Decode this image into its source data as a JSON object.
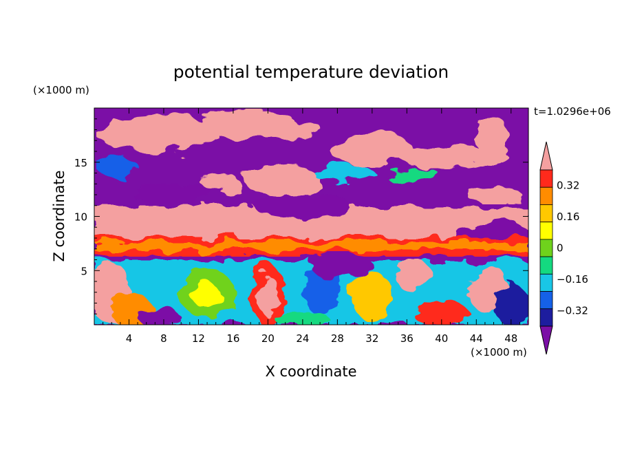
{
  "chart_data": {
    "type": "heatmap",
    "title": "potential temperature deviation",
    "time_label": "t=1.0296e+06",
    "xlabel": "X coordinate",
    "ylabel": "Z coordinate",
    "x_unit": "(×1000 m)",
    "y_unit": "(×1000 m)",
    "xlim": [
      0,
      50
    ],
    "ylim": [
      0,
      20
    ],
    "x_ticks": [
      "4",
      "8",
      "12",
      "16",
      "20",
      "24",
      "28",
      "32",
      "36",
      "40",
      "44",
      "48"
    ],
    "y_ticks": [
      "5",
      "10",
      "15"
    ],
    "colorbar": {
      "levels": [
        -0.4,
        -0.32,
        -0.24,
        -0.16,
        -0.08,
        0,
        0.08,
        0.16,
        0.24,
        0.32,
        0.4
      ],
      "tick_labels": [
        "0.32",
        "0.16",
        "0",
        "−0.16",
        "−0.32"
      ],
      "colors": [
        "#7b0fa6",
        "#1d1d9e",
        "#1561e8",
        "#19c6e6",
        "#14d980",
        "#6fd21c",
        "#ffff00",
        "#ffc800",
        "#ff8c00",
        "#ff2a1c",
        "#f4a0a0"
      ]
    },
    "layers": [
      {
        "z_range": [
          6.3,
          8.0
        ],
        "value": "0.24 to 0.32"
      },
      {
        "z_range": [
          8.0,
          11.0
        ],
        "value": "> 0.4"
      },
      {
        "z_range": [
          11.0,
          20.0
        ],
        "value": "mixed < -0.4 and > 0.4"
      },
      {
        "z_range": [
          0,
          5.5
        ],
        "value": "mixed -0.32 to 0.4"
      }
    ]
  }
}
